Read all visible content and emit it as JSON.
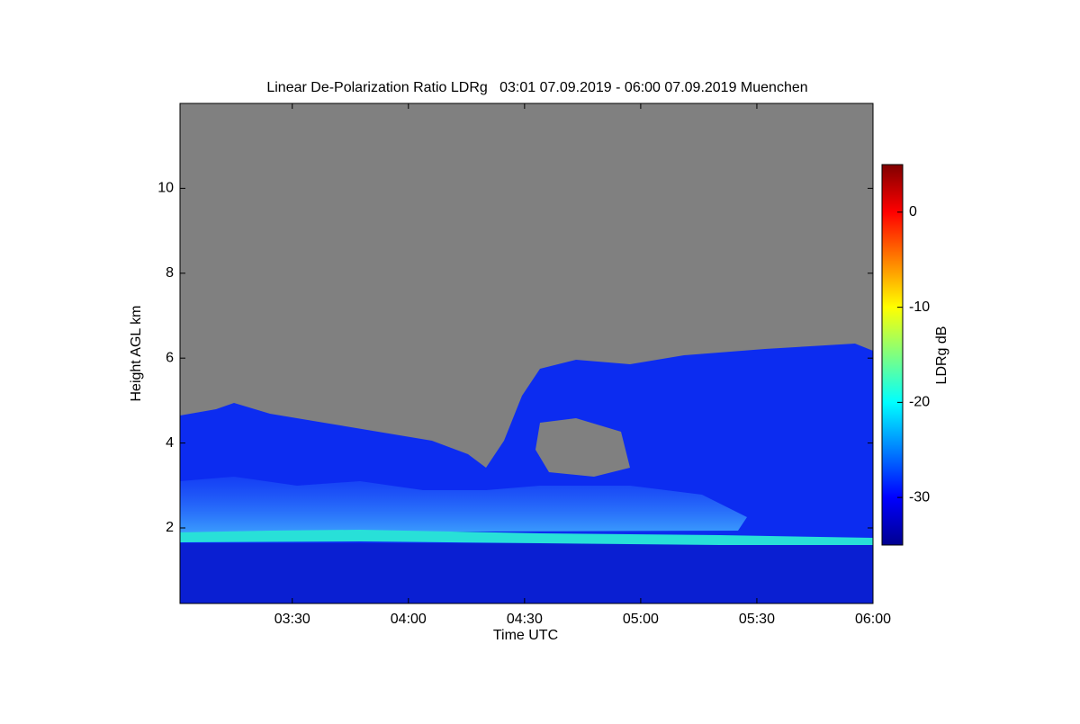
{
  "chart_data": {
    "type": "heatmap",
    "title": "Linear De-Polarization Ratio LDRg   03:01 07.09.2019 - 06:00 07.09.2019 Muenchen",
    "x_label": "Time UTC",
    "y_label": "Height AGL km",
    "colorbar_label": "LDRg dB",
    "xlim": [
      181,
      360
    ],
    "xticks": [
      {
        "value": 210,
        "label": "03:30"
      },
      {
        "value": 240,
        "label": "04:00"
      },
      {
        "value": 270,
        "label": "04:30"
      },
      {
        "value": 300,
        "label": "05:00"
      },
      {
        "value": 330,
        "label": "05:30"
      },
      {
        "value": 360,
        "label": "06:00"
      }
    ],
    "ylim": [
      0.22,
      12
    ],
    "yticks": [
      2,
      4,
      6,
      8,
      10
    ],
    "zlim": [
      -35,
      5
    ],
    "zticks": [
      0,
      -10,
      -20,
      -30
    ],
    "colormap": "jet"
  }
}
